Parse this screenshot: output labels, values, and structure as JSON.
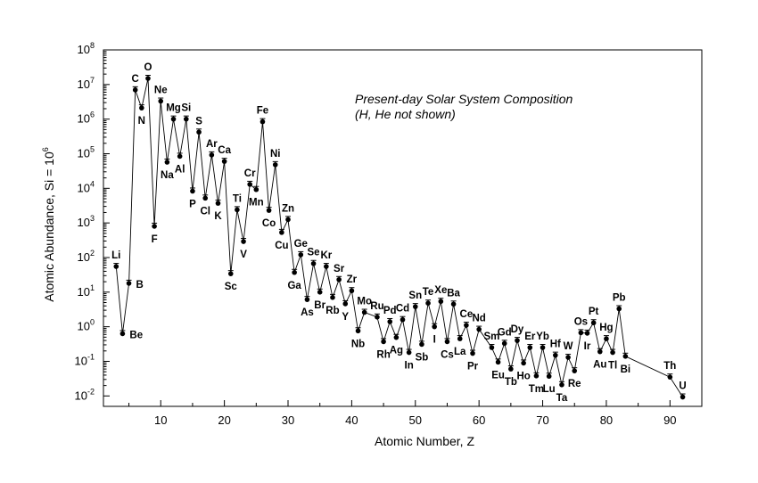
{
  "chart_data": {
    "type": "line",
    "scale_y": "log",
    "xlabel": "Atomic Number, Z",
    "ylabel": "Atomic Abundance, Si = 10",
    "ylabel_sup": "6",
    "xlim": [
      1,
      95
    ],
    "ylim": [
      0.005,
      100000000
    ],
    "x_ticks": [
      "10",
      "20",
      "30",
      "40",
      "50",
      "60",
      "70",
      "80",
      "90"
    ],
    "y_ticks": [
      {
        "base": "10",
        "exp": "-2"
      },
      {
        "base": "10",
        "exp": "-1"
      },
      {
        "base": "10",
        "exp": "0"
      },
      {
        "base": "10",
        "exp": "1"
      },
      {
        "base": "10",
        "exp": "2"
      },
      {
        "base": "10",
        "exp": "3"
      },
      {
        "base": "10",
        "exp": "4"
      },
      {
        "base": "10",
        "exp": "5"
      },
      {
        "base": "10",
        "exp": "6"
      },
      {
        "base": "10",
        "exp": "7"
      },
      {
        "base": "10",
        "exp": "8"
      }
    ],
    "annotation": [
      "Present-day Solar System Composition",
      "(H, He not shown)"
    ],
    "points": [
      {
        "label": "Li",
        "z": 3,
        "y": 55,
        "pos": "above"
      },
      {
        "label": "Be",
        "z": 4,
        "y": 0.63,
        "pos": "right"
      },
      {
        "label": "B",
        "z": 5,
        "y": 18,
        "pos": "right"
      },
      {
        "label": "C",
        "z": 6,
        "y": 7000000,
        "pos": "above"
      },
      {
        "label": "N",
        "z": 7,
        "y": 2100000,
        "pos": "below"
      },
      {
        "label": "O",
        "z": 8,
        "y": 15000000,
        "pos": "above"
      },
      {
        "label": "F",
        "z": 9,
        "y": 800,
        "pos": "below"
      },
      {
        "label": "Ne",
        "z": 10,
        "y": 3300000,
        "pos": "above"
      },
      {
        "label": "Na",
        "z": 11,
        "y": 57000,
        "pos": "below"
      },
      {
        "label": "Mg",
        "z": 12,
        "y": 1000000,
        "pos": "above"
      },
      {
        "label": "Al",
        "z": 13,
        "y": 84000,
        "pos": "below"
      },
      {
        "label": "Si",
        "z": 14,
        "y": 1000000,
        "pos": "above"
      },
      {
        "label": "P",
        "z": 15,
        "y": 8300,
        "pos": "below"
      },
      {
        "label": "S",
        "z": 16,
        "y": 420000,
        "pos": "above"
      },
      {
        "label": "Cl",
        "z": 17,
        "y": 5200,
        "pos": "below"
      },
      {
        "label": "Ar",
        "z": 18,
        "y": 92000,
        "pos": "above"
      },
      {
        "label": "K",
        "z": 19,
        "y": 3700,
        "pos": "below"
      },
      {
        "label": "Ca",
        "z": 20,
        "y": 60000,
        "pos": "above"
      },
      {
        "label": "Sc",
        "z": 21,
        "y": 34,
        "pos": "below"
      },
      {
        "label": "Ti",
        "z": 22,
        "y": 2400,
        "pos": "above"
      },
      {
        "label": "V",
        "z": 23,
        "y": 290,
        "pos": "below"
      },
      {
        "label": "Cr",
        "z": 24,
        "y": 13000,
        "pos": "above"
      },
      {
        "label": "Mn",
        "z": 25,
        "y": 9200,
        "pos": "below"
      },
      {
        "label": "Fe",
        "z": 26,
        "y": 840000,
        "pos": "above"
      },
      {
        "label": "Co",
        "z": 27,
        "y": 2300,
        "pos": "below"
      },
      {
        "label": "Ni",
        "z": 28,
        "y": 48000,
        "pos": "above"
      },
      {
        "label": "Cu",
        "z": 29,
        "y": 530,
        "pos": "below"
      },
      {
        "label": "Zn",
        "z": 30,
        "y": 1250,
        "pos": "above"
      },
      {
        "label": "Ga",
        "z": 31,
        "y": 37,
        "pos": "below"
      },
      {
        "label": "Ge",
        "z": 32,
        "y": 120,
        "pos": "above"
      },
      {
        "label": "As",
        "z": 33,
        "y": 6.1,
        "pos": "below"
      },
      {
        "label": "Se",
        "z": 34,
        "y": 67,
        "pos": "above"
      },
      {
        "label": "Br",
        "z": 35,
        "y": 10,
        "pos": "below"
      },
      {
        "label": "Kr",
        "z": 36,
        "y": 55,
        "pos": "above"
      },
      {
        "label": "Rb",
        "z": 37,
        "y": 7,
        "pos": "below"
      },
      {
        "label": "Sr",
        "z": 38,
        "y": 23,
        "pos": "above"
      },
      {
        "label": "Y",
        "z": 39,
        "y": 4.6,
        "pos": "below"
      },
      {
        "label": "Zr",
        "z": 40,
        "y": 11,
        "pos": "above"
      },
      {
        "label": "Nb",
        "z": 41,
        "y": 0.76,
        "pos": "below"
      },
      {
        "label": "Mo",
        "z": 42,
        "y": 2.6,
        "pos": "above"
      },
      {
        "label": "Ru",
        "z": 44,
        "y": 1.9,
        "pos": "above"
      },
      {
        "label": "Rh",
        "z": 45,
        "y": 0.37,
        "pos": "below"
      },
      {
        "label": "Pd",
        "z": 46,
        "y": 1.4,
        "pos": "above"
      },
      {
        "label": "Ag",
        "z": 47,
        "y": 0.49,
        "pos": "below"
      },
      {
        "label": "Cd",
        "z": 48,
        "y": 1.6,
        "pos": "above"
      },
      {
        "label": "In",
        "z": 49,
        "y": 0.18,
        "pos": "below"
      },
      {
        "label": "Sn",
        "z": 50,
        "y": 3.8,
        "pos": "above"
      },
      {
        "label": "Sb",
        "z": 51,
        "y": 0.31,
        "pos": "below"
      },
      {
        "label": "Te",
        "z": 52,
        "y": 4.8,
        "pos": "above"
      },
      {
        "label": "I",
        "z": 53,
        "y": 1,
        "pos": "below"
      },
      {
        "label": "Xe",
        "z": 54,
        "y": 5.4,
        "pos": "above"
      },
      {
        "label": "Cs",
        "z": 55,
        "y": 0.37,
        "pos": "below"
      },
      {
        "label": "Ba",
        "z": 56,
        "y": 4.5,
        "pos": "above"
      },
      {
        "label": "La",
        "z": 57,
        "y": 0.45,
        "pos": "below"
      },
      {
        "label": "Ce",
        "z": 58,
        "y": 1.1,
        "pos": "above"
      },
      {
        "label": "Pr",
        "z": 59,
        "y": 0.17,
        "pos": "below"
      },
      {
        "label": "Nd",
        "z": 60,
        "y": 0.84,
        "pos": "above"
      },
      {
        "label": "Sm",
        "z": 62,
        "y": 0.25,
        "pos": "above"
      },
      {
        "label": "Eu",
        "z": 63,
        "y": 0.095,
        "pos": "below"
      },
      {
        "label": "Gd",
        "z": 64,
        "y": 0.33,
        "pos": "above"
      },
      {
        "label": "Tb",
        "z": 65,
        "y": 0.06,
        "pos": "below"
      },
      {
        "label": "Dy",
        "z": 66,
        "y": 0.4,
        "pos": "above"
      },
      {
        "label": "Ho",
        "z": 67,
        "y": 0.089,
        "pos": "below"
      },
      {
        "label": "Er",
        "z": 68,
        "y": 0.25,
        "pos": "above"
      },
      {
        "label": "Tm",
        "z": 69,
        "y": 0.038,
        "pos": "below"
      },
      {
        "label": "Yb",
        "z": 70,
        "y": 0.25,
        "pos": "above"
      },
      {
        "label": "Lu",
        "z": 71,
        "y": 0.037,
        "pos": "below"
      },
      {
        "label": "Hf",
        "z": 72,
        "y": 0.15,
        "pos": "above"
      },
      {
        "label": "Ta",
        "z": 73,
        "y": 0.021,
        "pos": "below"
      },
      {
        "label": "W",
        "z": 74,
        "y": 0.13,
        "pos": "above"
      },
      {
        "label": "Re",
        "z": 75,
        "y": 0.053,
        "pos": "below"
      },
      {
        "label": "Os",
        "z": 76,
        "y": 0.67,
        "pos": "above"
      },
      {
        "label": "Ir",
        "z": 77,
        "y": 0.65,
        "pos": "below"
      },
      {
        "label": "Pt",
        "z": 78,
        "y": 1.3,
        "pos": "above"
      },
      {
        "label": "Au",
        "z": 79,
        "y": 0.19,
        "pos": "below"
      },
      {
        "label": "Hg",
        "z": 80,
        "y": 0.45,
        "pos": "above"
      },
      {
        "label": "Tl",
        "z": 81,
        "y": 0.18,
        "pos": "below"
      },
      {
        "label": "Pb",
        "z": 82,
        "y": 3.3,
        "pos": "above"
      },
      {
        "label": "Bi",
        "z": 83,
        "y": 0.14,
        "pos": "below"
      },
      {
        "label": "Th",
        "z": 90,
        "y": 0.035,
        "pos": "above"
      },
      {
        "label": "U",
        "z": 92,
        "y": 0.0093,
        "pos": "above"
      }
    ]
  }
}
